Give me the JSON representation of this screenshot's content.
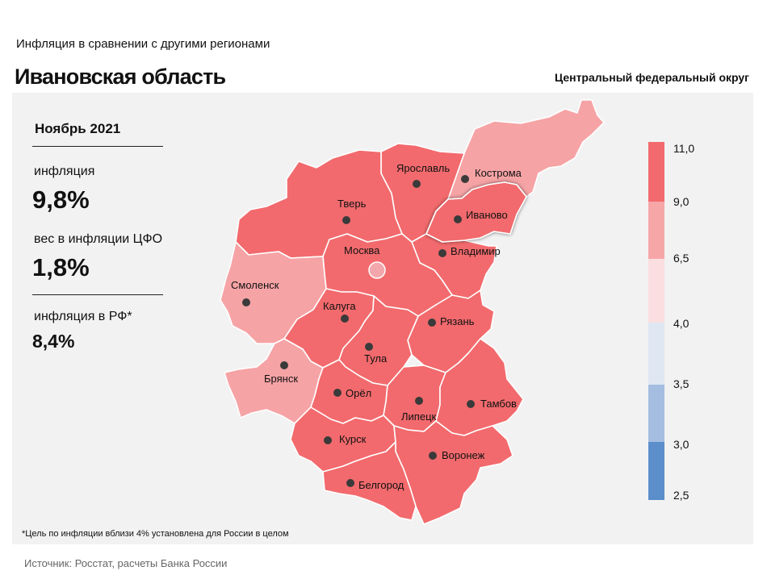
{
  "header": {
    "subtitle": "Инфляция  в сравнении  с другими  регионами",
    "title": "Ивановская область",
    "district": "Центральный федеральный округ"
  },
  "stats": {
    "period": "Ноябрь 2021",
    "inflation_label": "инфляция",
    "inflation_value": "9,8%",
    "weight_label": "вес в инфляции  ЦФО",
    "weight_value": "1,8%",
    "rf_label": "инфляция  в РФ*",
    "rf_value": "8,4%"
  },
  "legend": {
    "ticks": [
      "11,0",
      "9,0",
      "6,5",
      "4,0",
      "3,5",
      "3,0",
      "2,5"
    ],
    "colors": [
      "#f26a6d",
      "#f7a6a8",
      "#fbdee0",
      "#dfe7f3",
      "#a4bde0",
      "#5b8ecb"
    ]
  },
  "map": {
    "colors": {
      "high": "#f26a6d",
      "medium": "#f6a3a5",
      "capital": "#f3a7ad"
    },
    "regions": [
      {
        "id": "tver",
        "name": "Тверь",
        "category": "high"
      },
      {
        "id": "yaroslavl",
        "name": "Ярославль",
        "category": "high"
      },
      {
        "id": "kostroma",
        "name": "Кострома",
        "category": "medium"
      },
      {
        "id": "ivanovo",
        "name": "Иваново",
        "category": "high",
        "highlighted": true
      },
      {
        "id": "moscow",
        "name": "Москва",
        "category": "high"
      },
      {
        "id": "vladimir",
        "name": "Владимир",
        "category": "high"
      },
      {
        "id": "smolensk",
        "name": "Смоленск",
        "category": "medium"
      },
      {
        "id": "kaluga",
        "name": "Калуга",
        "category": "high"
      },
      {
        "id": "ryazan",
        "name": "Рязань",
        "category": "high"
      },
      {
        "id": "tula",
        "name": "Тула",
        "category": "high"
      },
      {
        "id": "bryansk",
        "name": "Брянск",
        "category": "medium"
      },
      {
        "id": "orel",
        "name": "Орёл",
        "category": "high"
      },
      {
        "id": "lipetsk",
        "name": "Липецк",
        "category": "high"
      },
      {
        "id": "tambov",
        "name": "Тамбов",
        "category": "high"
      },
      {
        "id": "kursk",
        "name": "Курск",
        "category": "high"
      },
      {
        "id": "voronezh",
        "name": "Воронеж",
        "category": "high"
      },
      {
        "id": "belgorod",
        "name": "Белгород",
        "category": "high"
      }
    ]
  },
  "footnote": "*Цель по инфляции вблизи 4% установлена для России в целом",
  "source": "Источник: Росстат, расчеты Банка России"
}
